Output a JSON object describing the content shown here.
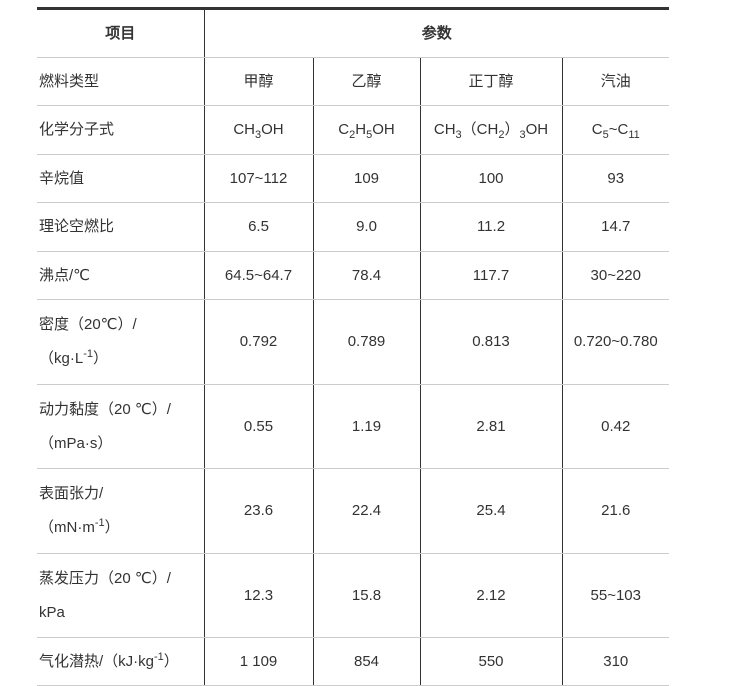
{
  "header": {
    "item": "项目",
    "params": "参数"
  },
  "rows": [
    {
      "label": [
        [
          {
            "t": "燃料类型"
          }
        ]
      ],
      "cells": [
        [
          {
            "t": "甲醇"
          }
        ],
        [
          {
            "t": "乙醇"
          }
        ],
        [
          {
            "t": "正丁醇"
          }
        ],
        [
          {
            "t": "汽油"
          }
        ]
      ]
    },
    {
      "label": [
        [
          {
            "t": "化学分子式"
          }
        ]
      ],
      "cells": [
        [
          {
            "t": "CH"
          },
          {
            "t": "3",
            "s": "sub"
          },
          {
            "t": "OH"
          }
        ],
        [
          {
            "t": "C"
          },
          {
            "t": "2",
            "s": "sub"
          },
          {
            "t": "H"
          },
          {
            "t": "5",
            "s": "sub"
          },
          {
            "t": "OH"
          }
        ],
        [
          {
            "t": "CH"
          },
          {
            "t": "3",
            "s": "sub"
          },
          {
            "t": "（CH"
          },
          {
            "t": "2",
            "s": "sub"
          },
          {
            "t": "）"
          },
          {
            "t": "3",
            "s": "sub"
          },
          {
            "t": "OH"
          }
        ],
        [
          {
            "t": "C"
          },
          {
            "t": "5",
            "s": "sub"
          },
          {
            "t": "~C"
          },
          {
            "t": "11",
            "s": "sub"
          }
        ]
      ]
    },
    {
      "label": [
        [
          {
            "t": "辛烷值"
          }
        ]
      ],
      "cells": [
        [
          {
            "t": "107~112"
          }
        ],
        [
          {
            "t": "109"
          }
        ],
        [
          {
            "t": "100"
          }
        ],
        [
          {
            "t": "93"
          }
        ]
      ]
    },
    {
      "label": [
        [
          {
            "t": "理论空燃比"
          }
        ]
      ],
      "cells": [
        [
          {
            "t": "6.5"
          }
        ],
        [
          {
            "t": "9.0"
          }
        ],
        [
          {
            "t": "11.2"
          }
        ],
        [
          {
            "t": "14.7"
          }
        ]
      ]
    },
    {
      "label": [
        [
          {
            "t": "沸点/℃"
          }
        ]
      ],
      "cells": [
        [
          {
            "t": "64.5~64.7"
          }
        ],
        [
          {
            "t": "78.4"
          }
        ],
        [
          {
            "t": "117.7"
          }
        ],
        [
          {
            "t": "30~220"
          }
        ]
      ]
    },
    {
      "label": [
        [
          {
            "t": "密度（20℃）/"
          }
        ],
        [
          {
            "t": "（kg·L"
          },
          {
            "t": "-1",
            "s": "sup"
          },
          {
            "t": "）"
          }
        ]
      ],
      "cells": [
        [
          {
            "t": "0.792"
          }
        ],
        [
          {
            "t": "0.789"
          }
        ],
        [
          {
            "t": "0.813"
          }
        ],
        [
          {
            "t": "0.720~0.780"
          }
        ]
      ]
    },
    {
      "label": [
        [
          {
            "t": "动力黏度（20 ℃）/"
          }
        ],
        [
          {
            "t": "（mPa·s）"
          }
        ]
      ],
      "cells": [
        [
          {
            "t": "0.55"
          }
        ],
        [
          {
            "t": "1.19"
          }
        ],
        [
          {
            "t": "2.81"
          }
        ],
        [
          {
            "t": "0.42"
          }
        ]
      ]
    },
    {
      "label": [
        [
          {
            "t": "表面张力/"
          }
        ],
        [
          {
            "t": "（mN·m"
          },
          {
            "t": "-1",
            "s": "sup"
          },
          {
            "t": "）"
          }
        ]
      ],
      "cells": [
        [
          {
            "t": "23.6"
          }
        ],
        [
          {
            "t": "22.4"
          }
        ],
        [
          {
            "t": "25.4"
          }
        ],
        [
          {
            "t": "21.6"
          }
        ]
      ]
    },
    {
      "label": [
        [
          {
            "t": "蒸发压力（20 ℃）/"
          }
        ],
        [
          {
            "t": "kPa"
          }
        ]
      ],
      "cells": [
        [
          {
            "t": "12.3"
          }
        ],
        [
          {
            "t": "15.8"
          }
        ],
        [
          {
            "t": "2.12"
          }
        ],
        [
          {
            "t": "55~103"
          }
        ]
      ]
    },
    {
      "label": [
        [
          {
            "t": "气化潜热/（kJ·kg"
          },
          {
            "t": "-1",
            "s": "sup"
          },
          {
            "t": "）"
          }
        ]
      ],
      "cells": [
        [
          {
            "t": "1 109"
          }
        ],
        [
          {
            "t": "854"
          }
        ],
        [
          {
            "t": "550"
          }
        ],
        [
          {
            "t": "310"
          }
        ]
      ]
    }
  ]
}
